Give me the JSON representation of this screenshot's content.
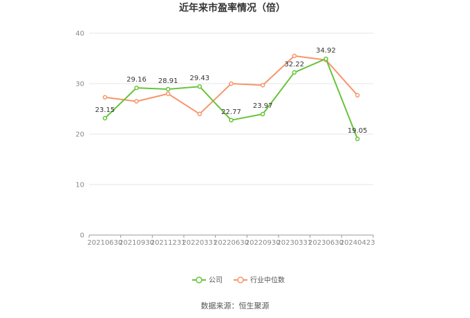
{
  "chart_data": {
    "type": "line",
    "title": "近年来市盈率情况（倍）",
    "source": "数据来源：恒生聚源",
    "x": [
      "20210630",
      "20210930",
      "20211231",
      "20220331",
      "20220630",
      "20220930",
      "20230331",
      "20230630",
      "20240423"
    ],
    "ylim": [
      0,
      40
    ],
    "yticks": [
      0,
      10,
      20,
      30,
      40
    ],
    "grid": true,
    "legend_position": "bottom",
    "series": [
      {
        "name": "公司",
        "color": "#66c43a",
        "values": [
          23.15,
          29.16,
          28.91,
          29.43,
          22.77,
          23.97,
          32.22,
          34.92,
          19.05
        ],
        "labels": [
          "23.15",
          "29.16",
          "28.91",
          "29.43",
          "22.77",
          "23.97",
          "32.22",
          "34.92",
          "19.05"
        ]
      },
      {
        "name": "行业中位数",
        "color": "#f7956a",
        "values": [
          27.3,
          26.5,
          28.0,
          24.0,
          30.0,
          29.7,
          35.5,
          34.7,
          27.7
        ]
      }
    ]
  }
}
